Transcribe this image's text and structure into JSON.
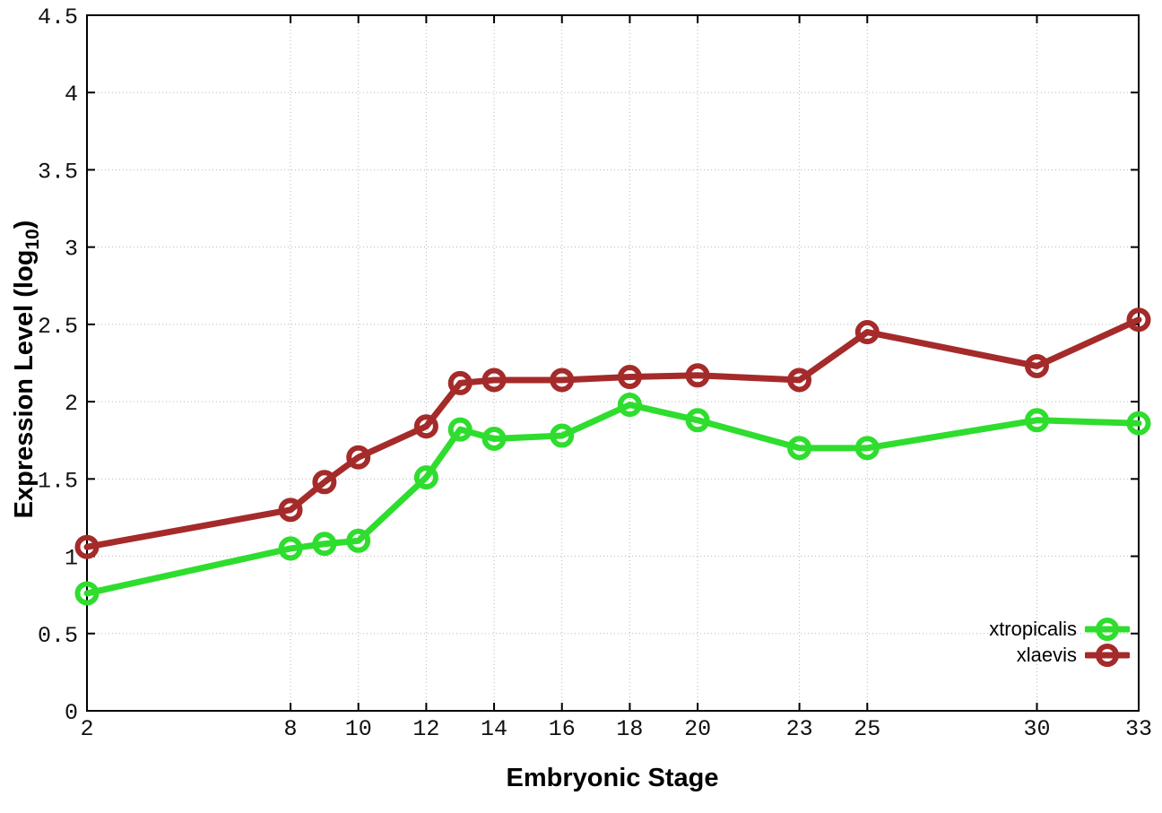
{
  "figure": {
    "background": "#ffffff",
    "border_color": "#000000",
    "grid_color": "#b8b8b8",
    "tick_label_color": "#111111"
  },
  "chart_data": {
    "type": "line",
    "title": "",
    "xlabel": "Embryonic Stage",
    "ylabel": {
      "pre": "Expression Level (log",
      "sub": "10",
      "post": ")"
    },
    "x": [
      2,
      8,
      9,
      10,
      12,
      13,
      14,
      16,
      18,
      20,
      23,
      25,
      30,
      33
    ],
    "xlim": [
      2,
      33
    ],
    "x_ticks": [
      2,
      8,
      10,
      12,
      14,
      16,
      18,
      20,
      23,
      25,
      30,
      33
    ],
    "x_tick_labels": [
      "2",
      "8",
      "10",
      "12",
      "14",
      "16",
      "18",
      "20",
      "23",
      "25",
      "30",
      "33"
    ],
    "ylim": [
      0,
      4.5
    ],
    "y_ticks": [
      0,
      0.5,
      1,
      1.5,
      2,
      2.5,
      3,
      3.5,
      4,
      4.5
    ],
    "y_tick_labels": [
      "0",
      "0.5",
      "1",
      "1.5",
      "2",
      "2.5",
      "3",
      "3.5",
      "4",
      "4.5"
    ],
    "grid": true,
    "legend_position": "bottom-right",
    "marker": "open-circle",
    "series": [
      {
        "name": "xtropicalis",
        "color": "#2EDD2E",
        "values": [
          0.76,
          1.05,
          1.08,
          1.1,
          1.51,
          1.82,
          1.76,
          1.78,
          1.98,
          1.88,
          1.7,
          1.7,
          1.88,
          1.86
        ]
      },
      {
        "name": "xlaevis",
        "color": "#A52A2A",
        "values": [
          1.06,
          1.3,
          1.48,
          1.64,
          1.84,
          2.12,
          2.14,
          2.14,
          2.16,
          2.17,
          2.14,
          2.45,
          2.23,
          2.53
        ]
      }
    ]
  }
}
